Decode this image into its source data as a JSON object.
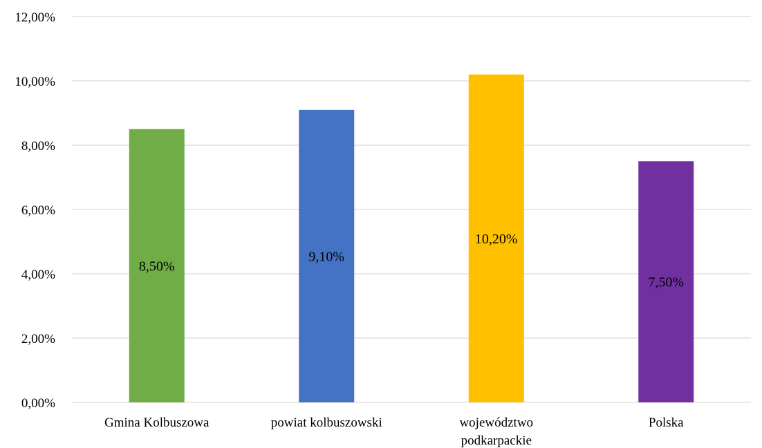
{
  "chart_data": {
    "type": "bar",
    "title": "",
    "xlabel": "",
    "ylabel": "",
    "categories": [
      [
        "Gmina Kolbuszowa"
      ],
      [
        "powiat kolbuszowski"
      ],
      [
        "województwo",
        "podkarpackie"
      ],
      [
        "Polska"
      ]
    ],
    "values": [
      8.5,
      9.1,
      10.2,
      7.5
    ],
    "data_labels": [
      "8,50%",
      "9,10%",
      "10,20%",
      "7,50%"
    ],
    "colors": [
      "#70ad47",
      "#4472c4",
      "#ffc000",
      "#7030a0"
    ],
    "ylim": [
      0,
      12
    ],
    "yticks": [
      0,
      2,
      4,
      6,
      8,
      10,
      12
    ],
    "ytick_labels": [
      "0,00%",
      "2,00%",
      "4,00%",
      "6,00%",
      "8,00%",
      "10,00%",
      "12,00%"
    ],
    "grid": true,
    "legend": "none"
  }
}
